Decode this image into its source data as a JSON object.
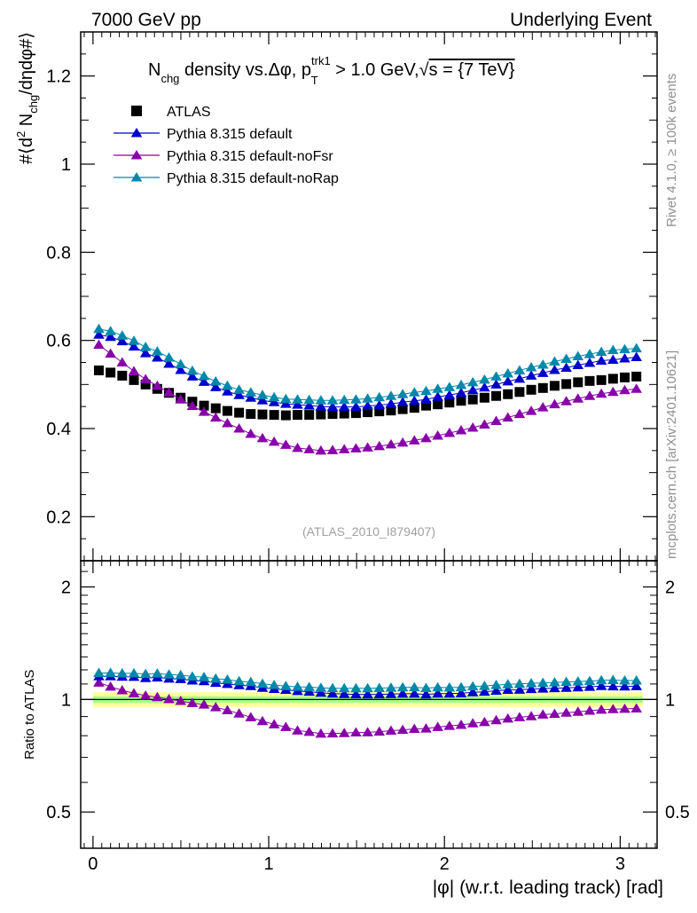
{
  "header": {
    "left": "7000 GeV pp",
    "right": "Underlying Event"
  },
  "side_labels": {
    "rivet": "Rivet 4.1.0, ≥ 100k events",
    "mcplots": "mcplots.cern.ch [arXiv:2401.10621]"
  },
  "watermark": "(ATLAS_2010_I879407)",
  "chart_data": {
    "type": "scatter",
    "title": "N_chg density vs. Δφ, p_T^trk1 > 1.0 GeV, √s = {7 TeV}",
    "title_parts": {
      "n": "N",
      "n_sub": "chg",
      "mid": " density vs.Δφ, p",
      "p_sup": "trk1",
      "p_sub": "T",
      "tail1": " > 1.0 GeV,",
      "sqrt": "√",
      "tail2": "s = {7 TeV}"
    },
    "ylabel": "#⟨d² N_chg/dηdφ#⟩",
    "ylabel_parts": {
      "a": "#⟨d",
      "sup": "2",
      "b": " N",
      "sub": "chg",
      "c": "/dηdφ#⟩"
    },
    "ratio_ylabel": "Ratio to ATLAS",
    "xlabel": "|φ| (w.r.t. leading track) [rad]",
    "xlim": [
      -0.07,
      3.21
    ],
    "ylim": [
      0.1,
      1.3
    ],
    "ratio_ylim": [
      0.4,
      2.35
    ],
    "xticks": [
      0,
      1,
      2,
      3
    ],
    "xtick_labels": [
      "0",
      "1",
      "2",
      "3"
    ],
    "yticks": [
      0.2,
      0.4,
      0.6,
      0.8,
      1,
      1.2
    ],
    "ytick_labels": [
      "0.2",
      "0.4",
      "0.6",
      "0.8",
      "1",
      "1.2"
    ],
    "ratio_yticks": [
      0.5,
      1,
      2
    ],
    "ratio_ytick_labels": [
      "0.5",
      "1",
      "2"
    ],
    "x": [
      0.0333,
      0.0998,
      0.1663,
      0.2328,
      0.2993,
      0.3658,
      0.4323,
      0.4988,
      0.5653,
      0.6318,
      0.6983,
      0.7648,
      0.8313,
      0.8978,
      0.9643,
      1.0308,
      1.0973,
      1.1638,
      1.2303,
      1.2968,
      1.3633,
      1.4298,
      1.4963,
      1.5628,
      1.6293,
      1.6958,
      1.7623,
      1.8288,
      1.8953,
      1.9618,
      2.0283,
      2.0948,
      2.1613,
      2.2278,
      2.2943,
      2.3608,
      2.4273,
      2.4938,
      2.5603,
      2.6268,
      2.6933,
      2.7598,
      2.8263,
      2.8928,
      2.9593,
      3.0258,
      3.0923
    ],
    "series": [
      {
        "name": "ATLAS",
        "marker": "square",
        "color": "#000000",
        "values": [
          0.532,
          0.527,
          0.52,
          0.51,
          0.5,
          0.49,
          0.481,
          0.47,
          0.461,
          0.452,
          0.446,
          0.44,
          0.436,
          0.433,
          0.432,
          0.431,
          0.43,
          0.431,
          0.431,
          0.432,
          0.433,
          0.434,
          0.435,
          0.437,
          0.439,
          0.441,
          0.444,
          0.447,
          0.452,
          0.455,
          0.459,
          0.463,
          0.466,
          0.47,
          0.474,
          0.478,
          0.483,
          0.488,
          0.492,
          0.497,
          0.501,
          0.505,
          0.508,
          0.51,
          0.513,
          0.516,
          0.518
        ],
        "ratio": [
          1,
          1,
          1,
          1,
          1,
          1,
          1,
          1,
          1,
          1,
          1,
          1,
          1,
          1,
          1,
          1,
          1,
          1,
          1,
          1,
          1,
          1,
          1,
          1,
          1,
          1,
          1,
          1,
          1,
          1,
          1,
          1,
          1,
          1,
          1,
          1,
          1,
          1,
          1,
          1,
          1,
          1,
          1,
          1,
          1,
          1,
          1
        ]
      },
      {
        "name": "Pythia 8.315 default",
        "marker": "triangle",
        "color": "#0000cc",
        "values": [
          0.613,
          0.608,
          0.598,
          0.586,
          0.571,
          0.561,
          0.547,
          0.533,
          0.518,
          0.506,
          0.494,
          0.484,
          0.476,
          0.47,
          0.464,
          0.46,
          0.456,
          0.454,
          0.452,
          0.45,
          0.449,
          0.449,
          0.449,
          0.451,
          0.453,
          0.456,
          0.46,
          0.463,
          0.466,
          0.472,
          0.476,
          0.481,
          0.487,
          0.493,
          0.5,
          0.507,
          0.513,
          0.52,
          0.526,
          0.533,
          0.538,
          0.544,
          0.549,
          0.554,
          0.556,
          0.559,
          0.562
        ],
        "ratio": [
          1.153,
          1.153,
          1.15,
          1.149,
          1.141,
          1.145,
          1.137,
          1.134,
          1.124,
          1.119,
          1.108,
          1.1,
          1.092,
          1.086,
          1.074,
          1.067,
          1.061,
          1.053,
          1.049,
          1.042,
          1.037,
          1.034,
          1.032,
          1.031,
          1.032,
          1.034,
          1.036,
          1.036,
          1.031,
          1.037,
          1.037,
          1.039,
          1.045,
          1.049,
          1.055,
          1.061,
          1.062,
          1.066,
          1.069,
          1.072,
          1.074,
          1.077,
          1.081,
          1.086,
          1.084,
          1.083,
          1.085
        ]
      },
      {
        "name": "Pythia 8.315 default-noFsr",
        "marker": "triangle",
        "color": "#8800aa",
        "values": [
          0.59,
          0.57,
          0.55,
          0.53,
          0.512,
          0.497,
          0.482,
          0.466,
          0.451,
          0.438,
          0.425,
          0.412,
          0.4,
          0.388,
          0.378,
          0.37,
          0.363,
          0.356,
          0.353,
          0.35,
          0.351,
          0.353,
          0.355,
          0.357,
          0.36,
          0.364,
          0.368,
          0.373,
          0.378,
          0.384,
          0.39,
          0.396,
          0.402,
          0.409,
          0.417,
          0.425,
          0.433,
          0.44,
          0.448,
          0.455,
          0.462,
          0.468,
          0.474,
          0.479,
          0.483,
          0.487,
          0.49
        ],
        "ratio": [
          1.109,
          1.082,
          1.058,
          1.039,
          1.024,
          1.014,
          1.002,
          0.991,
          0.978,
          0.969,
          0.953,
          0.936,
          0.917,
          0.896,
          0.875,
          0.858,
          0.844,
          0.826,
          0.819,
          0.81,
          0.811,
          0.813,
          0.816,
          0.817,
          0.82,
          0.825,
          0.829,
          0.834,
          0.836,
          0.844,
          0.85,
          0.855,
          0.863,
          0.87,
          0.88,
          0.889,
          0.896,
          0.902,
          0.911,
          0.915,
          0.922,
          0.927,
          0.933,
          0.939,
          0.942,
          0.944,
          0.946
        ]
      },
      {
        "name": "Pythia 8.315 default-noRap",
        "marker": "triangle",
        "color": "#0088aa",
        "values": [
          0.626,
          0.621,
          0.611,
          0.599,
          0.585,
          0.575,
          0.561,
          0.546,
          0.531,
          0.519,
          0.507,
          0.497,
          0.488,
          0.482,
          0.476,
          0.471,
          0.467,
          0.466,
          0.465,
          0.464,
          0.464,
          0.465,
          0.466,
          0.468,
          0.471,
          0.474,
          0.478,
          0.482,
          0.485,
          0.49,
          0.494,
          0.499,
          0.505,
          0.511,
          0.518,
          0.525,
          0.532,
          0.539,
          0.545,
          0.552,
          0.558,
          0.564,
          0.569,
          0.574,
          0.578,
          0.58,
          0.582
        ],
        "ratio": [
          1.177,
          1.178,
          1.175,
          1.175,
          1.17,
          1.173,
          1.166,
          1.162,
          1.152,
          1.148,
          1.137,
          1.13,
          1.119,
          1.113,
          1.102,
          1.093,
          1.086,
          1.081,
          1.079,
          1.074,
          1.072,
          1.071,
          1.071,
          1.071,
          1.073,
          1.075,
          1.077,
          1.078,
          1.073,
          1.077,
          1.076,
          1.078,
          1.084,
          1.087,
          1.093,
          1.098,
          1.101,
          1.105,
          1.108,
          1.111,
          1.114,
          1.117,
          1.12,
          1.125,
          1.127,
          1.124,
          1.124
        ]
      }
    ],
    "ratio_band": {
      "inner_color": "#a8ff8a",
      "outer_color": "#ffff99",
      "inner": [
        0.02,
        0.02,
        0.02,
        0.02,
        0.02,
        0.02,
        0.02,
        0.02,
        0.02,
        0.02,
        0.02,
        0.02,
        0.02,
        0.02,
        0.02,
        0.02,
        0.02,
        0.02,
        0.02,
        0.02,
        0.02,
        0.02,
        0.02,
        0.02,
        0.02,
        0.02,
        0.02,
        0.02,
        0.02,
        0.02,
        0.02,
        0.02,
        0.02,
        0.02,
        0.02,
        0.02,
        0.02,
        0.02,
        0.02,
        0.02,
        0.02,
        0.02,
        0.02,
        0.02,
        0.02,
        0.02,
        0.02
      ],
      "outer": [
        0.045,
        0.045,
        0.045,
        0.045,
        0.045,
        0.045,
        0.045,
        0.045,
        0.045,
        0.045,
        0.045,
        0.045,
        0.045,
        0.045,
        0.045,
        0.045,
        0.045,
        0.045,
        0.045,
        0.045,
        0.045,
        0.045,
        0.045,
        0.045,
        0.045,
        0.045,
        0.045,
        0.045,
        0.045,
        0.045,
        0.045,
        0.045,
        0.045,
        0.045,
        0.045,
        0.045,
        0.045,
        0.045,
        0.045,
        0.045,
        0.045,
        0.045,
        0.045,
        0.045,
        0.045,
        0.045,
        0.045
      ]
    },
    "legend_position": "top-left"
  }
}
